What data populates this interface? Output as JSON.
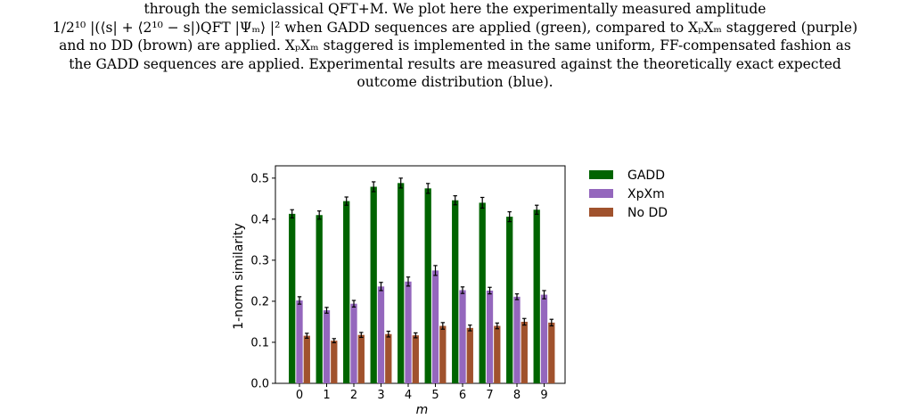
{
  "caption": {
    "lines": [
      "through the semiclassical QFT+M. We plot here the experimentally measured amplitude",
      "1/2¹⁰ |(⟨s| + ⟨2¹⁰ − s|)QFT |Ψₘ⟩ |² when GADD sequences are applied (green), compared to XₚXₘ staggered (purple)",
      "and no DD (brown) are applied. XₚXₘ staggered is implemented in the same uniform, FF-compensated fashion as",
      "the GADD sequences are applied. Experimental results are measured against the theoretically exact expected",
      "outcome distribution (blue)."
    ]
  },
  "chart_data": {
    "type": "bar",
    "xlabel": "m",
    "ylabel": "1-norm similarity",
    "categories": [
      "0",
      "1",
      "2",
      "3",
      "4",
      "5",
      "6",
      "7",
      "8",
      "9"
    ],
    "ylim": [
      0.0,
      0.53
    ],
    "yticks": [
      "0.0",
      "0.1",
      "0.2",
      "0.3",
      "0.4",
      "0.5"
    ],
    "legend_position": "outside-top-right",
    "series": [
      {
        "name": "GADD",
        "color": "#006400",
        "values": [
          0.413,
          0.41,
          0.444,
          0.479,
          0.488,
          0.475,
          0.446,
          0.44,
          0.406,
          0.423
        ],
        "errors": [
          0.01,
          0.01,
          0.01,
          0.012,
          0.012,
          0.012,
          0.011,
          0.013,
          0.012,
          0.011
        ]
      },
      {
        "name": "XpXm",
        "color": "#9467bd",
        "values": [
          0.202,
          0.178,
          0.194,
          0.236,
          0.248,
          0.275,
          0.227,
          0.226,
          0.211,
          0.216
        ],
        "errors": [
          0.009,
          0.007,
          0.008,
          0.01,
          0.011,
          0.012,
          0.008,
          0.008,
          0.007,
          0.01
        ]
      },
      {
        "name": "No DD",
        "color": "#a0522d",
        "values": [
          0.116,
          0.104,
          0.118,
          0.12,
          0.117,
          0.14,
          0.135,
          0.14,
          0.15,
          0.148
        ],
        "errors": [
          0.006,
          0.005,
          0.006,
          0.007,
          0.006,
          0.008,
          0.007,
          0.007,
          0.008,
          0.008
        ]
      }
    ]
  }
}
